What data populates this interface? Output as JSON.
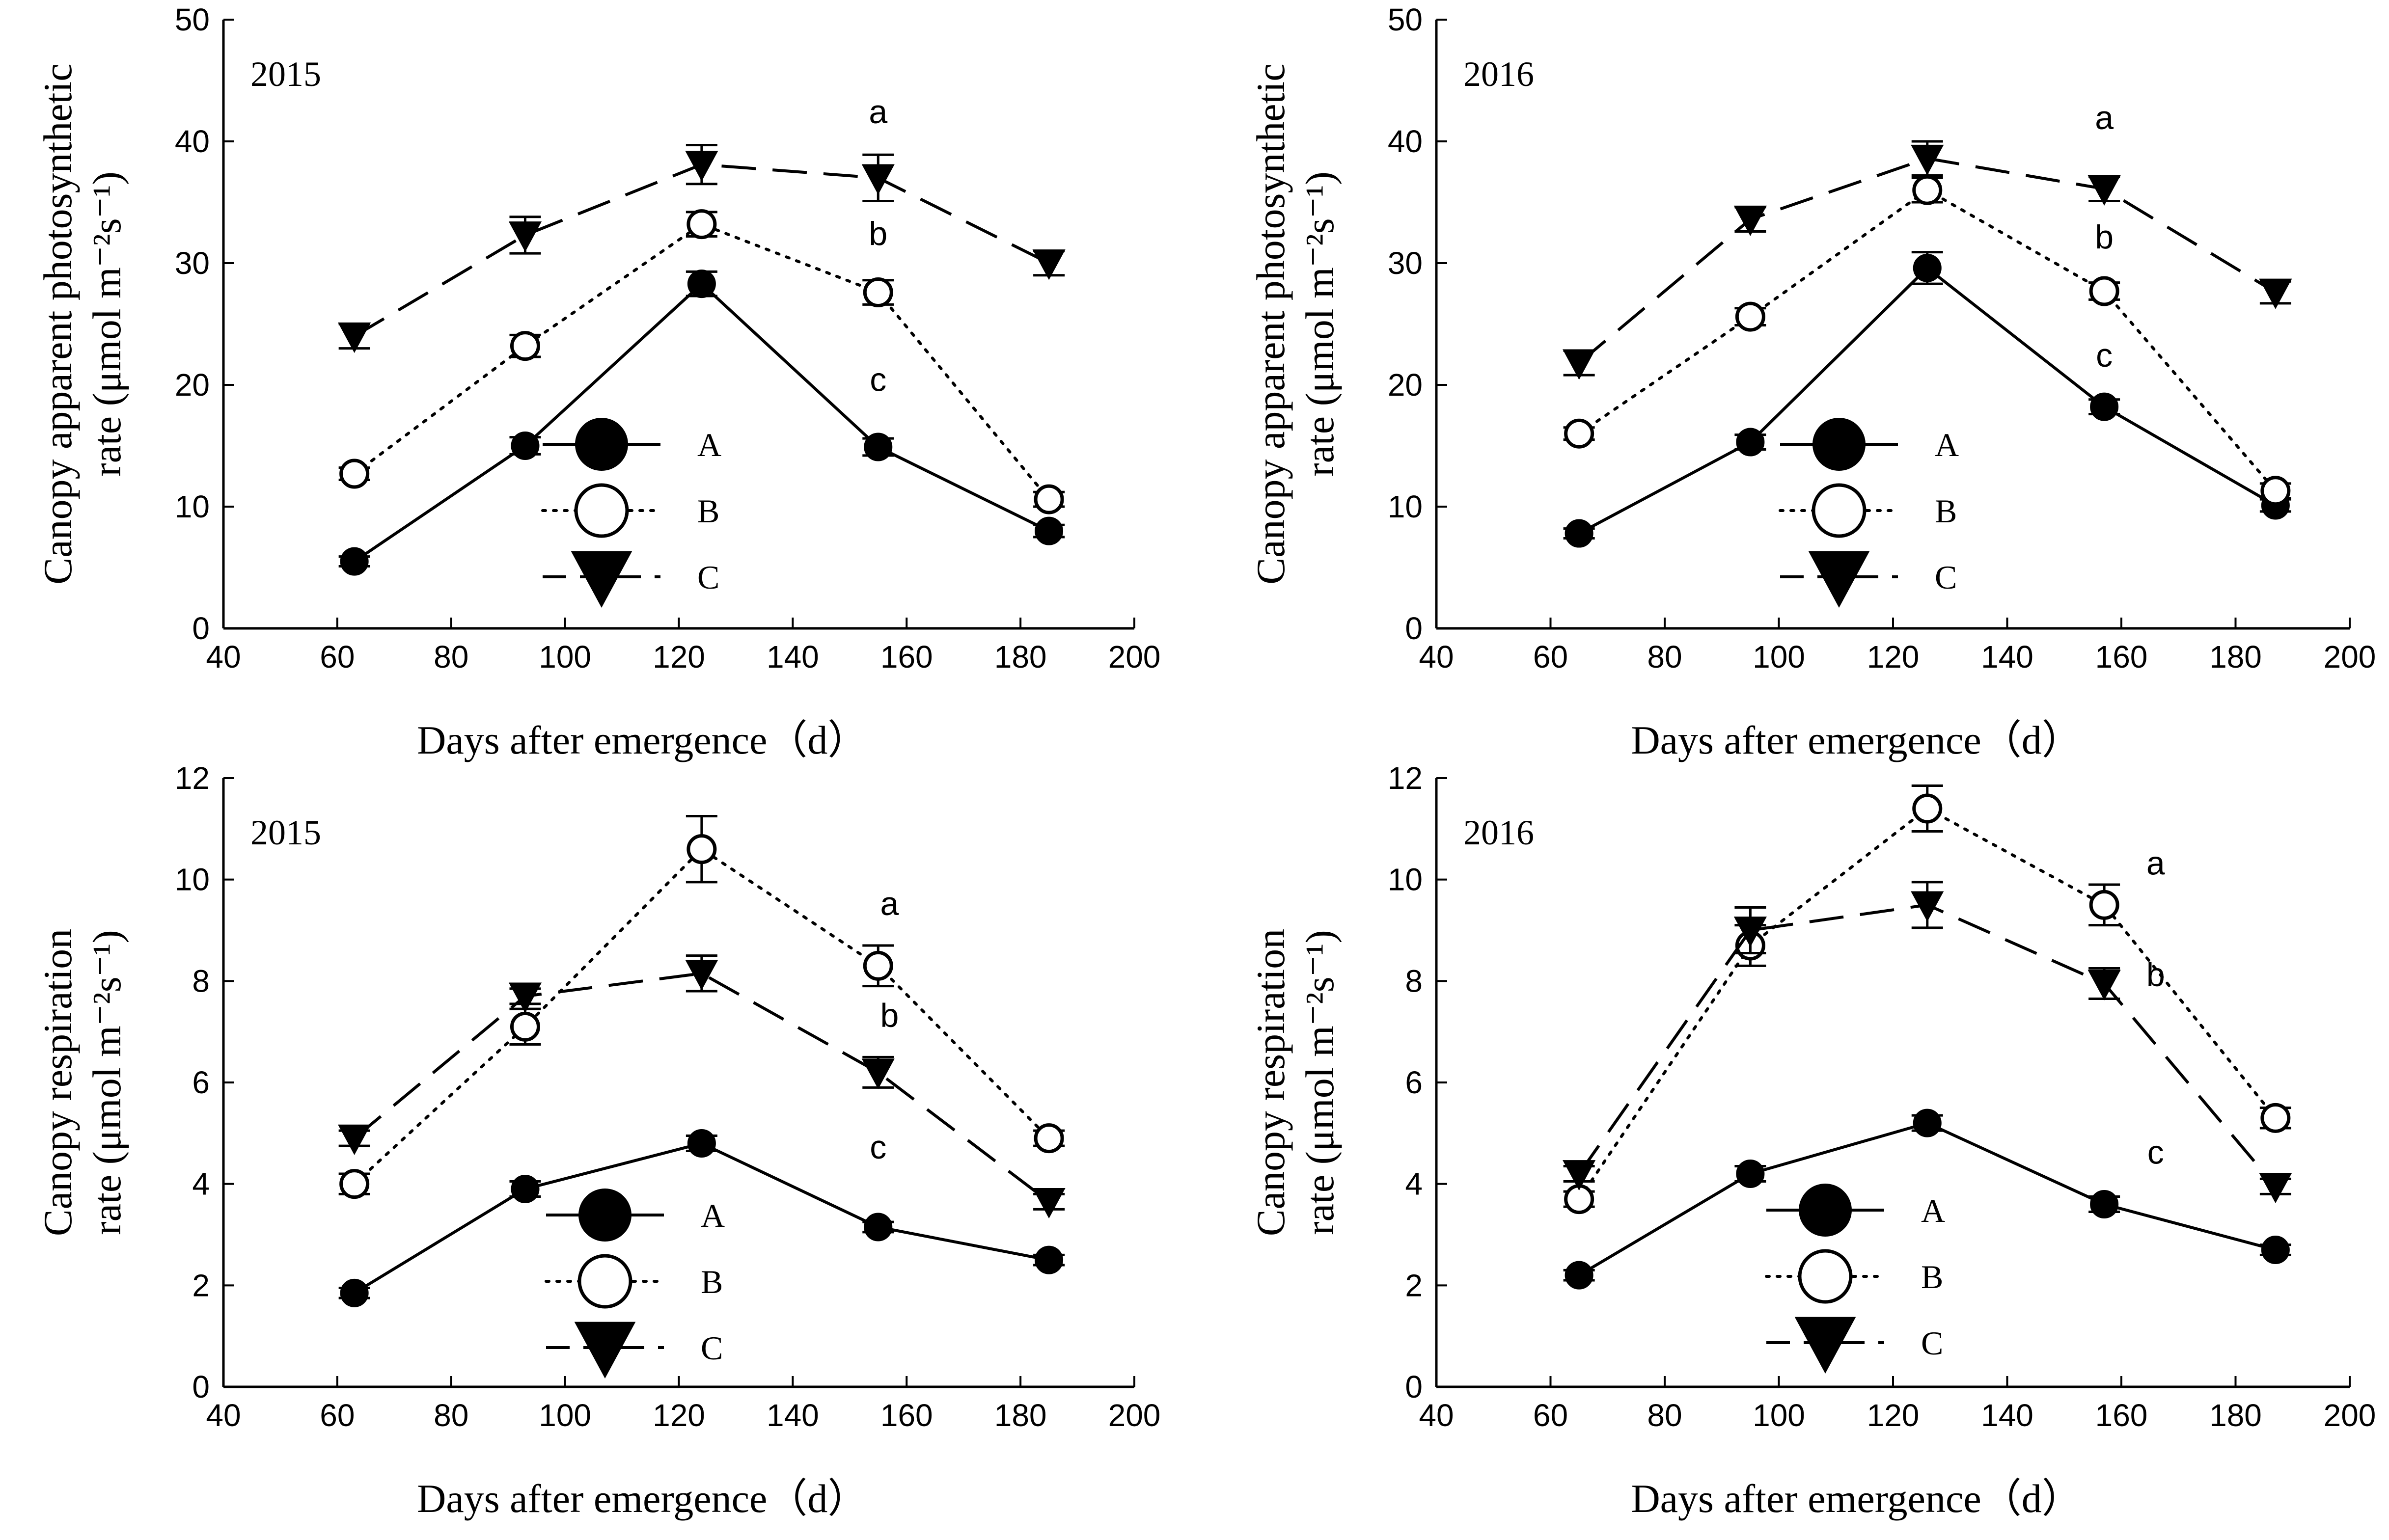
{
  "figure": {
    "background": "#ffffff",
    "ink": "#000000"
  },
  "chart_data": [
    {
      "type": "line",
      "panel": "top-left",
      "annotation": "2015",
      "xlabel": "Days after emergence（d）",
      "ylabel_lines": [
        "Canopy apparent photosynthetic",
        "rate (μmol m⁻²s⁻¹)"
      ],
      "xlim": [
        40,
        200
      ],
      "ylim": [
        0,
        50
      ],
      "xticks": [
        40,
        60,
        80,
        100,
        120,
        140,
        160,
        180,
        200
      ],
      "yticks": [
        0,
        10,
        20,
        30,
        40,
        50
      ],
      "x": [
        63,
        93,
        124,
        155,
        185
      ],
      "series": [
        {
          "name": "A",
          "marker": "filled-circle",
          "line": "solid",
          "values": [
            5.5,
            15.0,
            28.3,
            14.9,
            8.0
          ],
          "errors": [
            0.4,
            0.7,
            1.0,
            0.7,
            0.5
          ]
        },
        {
          "name": "B",
          "marker": "open-circle",
          "line": "dotted",
          "values": [
            12.7,
            23.2,
            33.2,
            27.6,
            10.6
          ],
          "errors": [
            0.5,
            0.9,
            1.0,
            1.0,
            0.6
          ]
        },
        {
          "name": "C",
          "marker": "filled-triangle-down",
          "line": "dashed",
          "values": [
            24.0,
            32.3,
            38.1,
            37.0,
            30.0
          ],
          "errors": [
            1.0,
            1.5,
            1.6,
            1.9,
            1.0
          ]
        }
      ],
      "letters": [
        {
          "text": "a",
          "x": 155,
          "y": 41.5
        },
        {
          "text": "b",
          "x": 155,
          "y": 31.5
        },
        {
          "text": "c",
          "x": 155,
          "y": 19.5
        }
      ],
      "legend": {
        "entries": [
          "A",
          "B",
          "C"
        ],
        "position": "lower-middle"
      }
    },
    {
      "type": "line",
      "panel": "top-right",
      "annotation": "2016",
      "xlabel": "Days after emergence（d）",
      "ylabel_lines": [
        "Canopy apparent photosynthetic",
        "rate (μmol m⁻²s⁻¹)"
      ],
      "xlim": [
        40,
        200
      ],
      "ylim": [
        0,
        50
      ],
      "xticks": [
        40,
        60,
        80,
        100,
        120,
        140,
        160,
        180,
        200
      ],
      "yticks": [
        0,
        10,
        20,
        30,
        40,
        50
      ],
      "x": [
        65,
        95,
        126,
        157,
        187
      ],
      "series": [
        {
          "name": "A",
          "marker": "filled-circle",
          "line": "solid",
          "values": [
            7.8,
            15.3,
            29.6,
            18.2,
            10.1
          ],
          "errors": [
            0.4,
            0.6,
            1.3,
            0.6,
            0.5
          ]
        },
        {
          "name": "B",
          "marker": "open-circle",
          "line": "dotted",
          "values": [
            16.0,
            25.6,
            36.0,
            27.7,
            11.3
          ],
          "errors": [
            0.5,
            0.7,
            1.0,
            0.7,
            0.6
          ]
        },
        {
          "name": "C",
          "marker": "filled-triangle-down",
          "line": "dashed",
          "values": [
            21.8,
            33.6,
            38.6,
            36.1,
            27.6
          ],
          "errors": [
            1.0,
            1.0,
            1.4,
            1.0,
            0.9
          ]
        }
      ],
      "letters": [
        {
          "text": "a",
          "x": 157,
          "y": 41.0
        },
        {
          "text": "b",
          "x": 157,
          "y": 31.2
        },
        {
          "text": "c",
          "x": 157,
          "y": 21.5
        }
      ],
      "legend": {
        "entries": [
          "A",
          "B",
          "C"
        ],
        "position": "lower-middle"
      }
    },
    {
      "type": "line",
      "panel": "bottom-left",
      "annotation": "2015",
      "xlabel": "Days after emergence（d）",
      "ylabel_lines": [
        "Canopy respiration",
        "rate (μmol m⁻²s⁻¹)"
      ],
      "xlim": [
        40,
        200
      ],
      "ylim": [
        0,
        12
      ],
      "xticks": [
        40,
        60,
        80,
        100,
        120,
        140,
        160,
        180,
        200
      ],
      "yticks": [
        0,
        2,
        4,
        6,
        8,
        10,
        12
      ],
      "x": [
        63,
        93,
        124,
        155,
        185
      ],
      "series": [
        {
          "name": "A",
          "marker": "filled-circle",
          "line": "solid",
          "values": [
            1.85,
            3.9,
            4.8,
            3.15,
            2.5
          ],
          "errors": [
            0.1,
            0.15,
            0.15,
            0.1,
            0.1
          ]
        },
        {
          "name": "B",
          "marker": "open-circle",
          "line": "dotted",
          "values": [
            4.0,
            7.1,
            10.6,
            8.3,
            4.9
          ],
          "errors": [
            0.2,
            0.35,
            0.65,
            0.4,
            0.15
          ]
        },
        {
          "name": "C",
          "marker": "filled-triangle-down",
          "line": "dashed",
          "values": [
            4.9,
            7.7,
            8.15,
            6.2,
            3.65
          ],
          "errors": [
            0.15,
            0.15,
            0.35,
            0.3,
            0.15
          ]
        }
      ],
      "letters": [
        {
          "text": "a",
          "x": 157,
          "y": 9.3
        },
        {
          "text": "b",
          "x": 157,
          "y": 7.1
        },
        {
          "text": "c",
          "x": 155,
          "y": 4.5
        }
      ],
      "legend": {
        "entries": [
          "A",
          "B",
          "C"
        ],
        "position": "lower-middle"
      }
    },
    {
      "type": "line",
      "panel": "bottom-right",
      "annotation": "2016",
      "xlabel": "Days after emergence（d）",
      "ylabel_lines": [
        "Canopy respiration",
        "rate (μmol m⁻²s⁻¹)"
      ],
      "xlim": [
        40,
        200
      ],
      "ylim": [
        0,
        12
      ],
      "xticks": [
        40,
        60,
        80,
        100,
        120,
        140,
        160,
        180,
        200
      ],
      "yticks": [
        0,
        2,
        4,
        6,
        8,
        10,
        12
      ],
      "x": [
        65,
        95,
        126,
        157,
        187
      ],
      "series": [
        {
          "name": "A",
          "marker": "filled-circle",
          "line": "solid",
          "values": [
            2.2,
            4.2,
            5.2,
            3.6,
            2.7
          ],
          "errors": [
            0.1,
            0.15,
            0.15,
            0.15,
            0.1
          ]
        },
        {
          "name": "B",
          "marker": "open-circle",
          "line": "dotted",
          "values": [
            3.7,
            8.7,
            11.4,
            9.5,
            5.3
          ],
          "errors": [
            0.15,
            0.4,
            0.45,
            0.4,
            0.2
          ]
        },
        {
          "name": "C",
          "marker": "filled-triangle-down",
          "line": "dashed",
          "values": [
            4.2,
            9.0,
            9.5,
            7.95,
            3.95
          ],
          "errors": [
            0.15,
            0.45,
            0.45,
            0.3,
            0.15
          ]
        }
      ],
      "letters": [
        {
          "text": "a",
          "x": 166,
          "y": 10.1
        },
        {
          "text": "b",
          "x": 166,
          "y": 7.9
        },
        {
          "text": "c",
          "x": 166,
          "y": 4.4
        }
      ],
      "legend": {
        "entries": [
          "A",
          "B",
          "C"
        ],
        "position": "lower-middle"
      }
    }
  ]
}
